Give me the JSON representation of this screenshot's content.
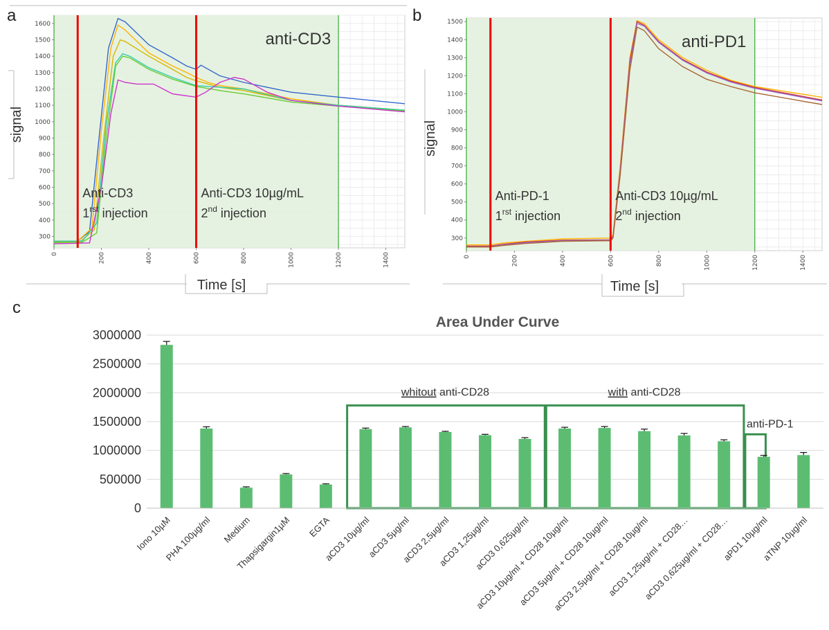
{
  "figure": {
    "letters": [
      "a",
      "b",
      "c"
    ]
  },
  "chart_data": [
    {
      "panel": "a",
      "type": "line",
      "annotation": "anti-CD3",
      "xlabel": "Time [s]",
      "ylabel": "signal",
      "xlim": [
        0,
        1480
      ],
      "ylim": [
        230,
        1650
      ],
      "x_ticks": [
        0,
        200,
        400,
        600,
        800,
        1000,
        1200,
        1400
      ],
      "y_ticks": [
        300,
        400,
        500,
        600,
        700,
        800,
        900,
        1000,
        1100,
        1200,
        1300,
        1400,
        1500,
        1600
      ],
      "shaded_range": [
        0,
        1200
      ],
      "colors": {
        "shade": "#e3f1de",
        "boundary": "#33aa33",
        "injection": "#ee0000"
      },
      "injection_lines": [
        {
          "x": 100,
          "line1": "Anti-CD3",
          "line2_base": "1",
          "line2_sup": "rst",
          "line2_rest": " injection"
        },
        {
          "x": 600,
          "line1": "Anti-CD3 10µg/mL",
          "line2_base": "2",
          "line2_sup": "nd",
          "line2_rest": " injection"
        }
      ],
      "series": [
        {
          "color": "#3366cc",
          "points": [
            [
              0,
              270
            ],
            [
              100,
              272
            ],
            [
              150,
              330
            ],
            [
              190,
              900
            ],
            [
              230,
              1450
            ],
            [
              270,
              1630
            ],
            [
              300,
              1610
            ],
            [
              400,
              1470
            ],
            [
              500,
              1390
            ],
            [
              560,
              1340
            ],
            [
              600,
              1320
            ],
            [
              620,
              1345
            ],
            [
              700,
              1280
            ],
            [
              800,
              1240
            ],
            [
              1000,
              1180
            ],
            [
              1200,
              1150
            ],
            [
              1480,
              1110
            ]
          ]
        },
        {
          "color": "#ffb300",
          "points": [
            [
              0,
              270
            ],
            [
              100,
              272
            ],
            [
              160,
              350
            ],
            [
              200,
              950
            ],
            [
              240,
              1450
            ],
            [
              270,
              1590
            ],
            [
              300,
              1560
            ],
            [
              400,
              1420
            ],
            [
              500,
              1340
            ],
            [
              560,
              1300
            ],
            [
              600,
              1270
            ],
            [
              650,
              1240
            ],
            [
              700,
              1220
            ],
            [
              800,
              1200
            ],
            [
              1000,
              1140
            ],
            [
              1200,
              1100
            ],
            [
              1480,
              1070
            ]
          ]
        },
        {
          "color": "#d4b800",
          "points": [
            [
              0,
              265
            ],
            [
              110,
              268
            ],
            [
              170,
              340
            ],
            [
              210,
              900
            ],
            [
              250,
              1400
            ],
            [
              280,
              1500
            ],
            [
              300,
              1490
            ],
            [
              400,
              1400
            ],
            [
              500,
              1320
            ],
            [
              560,
              1270
            ],
            [
              600,
              1250
            ],
            [
              700,
              1210
            ],
            [
              800,
              1190
            ],
            [
              1000,
              1130
            ],
            [
              1200,
              1100
            ],
            [
              1480,
              1070
            ]
          ]
        },
        {
          "color": "#33ccaa",
          "points": [
            [
              0,
              270
            ],
            [
              120,
              272
            ],
            [
              180,
              380
            ],
            [
              220,
              980
            ],
            [
              260,
              1360
            ],
            [
              290,
              1415
            ],
            [
              320,
              1400
            ],
            [
              400,
              1330
            ],
            [
              500,
              1270
            ],
            [
              560,
              1240
            ],
            [
              600,
              1220
            ],
            [
              700,
              1210
            ],
            [
              800,
              1200
            ],
            [
              1000,
              1130
            ],
            [
              1200,
              1100
            ],
            [
              1480,
              1070
            ]
          ]
        },
        {
          "color": "#66cc33",
          "points": [
            [
              0,
              262
            ],
            [
              120,
              265
            ],
            [
              180,
              320
            ],
            [
              220,
              900
            ],
            [
              260,
              1340
            ],
            [
              290,
              1400
            ],
            [
              320,
              1390
            ],
            [
              400,
              1320
            ],
            [
              500,
              1260
            ],
            [
              600,
              1215
            ],
            [
              700,
              1190
            ],
            [
              800,
              1170
            ],
            [
              1000,
              1120
            ],
            [
              1200,
              1095
            ],
            [
              1480,
              1065
            ]
          ]
        },
        {
          "color": "#cc33cc",
          "points": [
            [
              0,
              255
            ],
            [
              150,
              260
            ],
            [
              200,
              600
            ],
            [
              240,
              1050
            ],
            [
              270,
              1255
            ],
            [
              300,
              1240
            ],
            [
              350,
              1230
            ],
            [
              420,
              1230
            ],
            [
              500,
              1170
            ],
            [
              600,
              1150
            ],
            [
              640,
              1180
            ],
            [
              700,
              1240
            ],
            [
              760,
              1270
            ],
            [
              800,
              1260
            ],
            [
              900,
              1180
            ],
            [
              1000,
              1130
            ],
            [
              1200,
              1095
            ],
            [
              1480,
              1060
            ]
          ]
        }
      ]
    },
    {
      "panel": "b",
      "type": "line",
      "annotation": "anti-PD1",
      "xlabel": "Time [s]",
      "ylabel": "signal",
      "xlim": [
        0,
        1480
      ],
      "ylim": [
        230,
        1520
      ],
      "x_ticks": [
        0,
        200,
        400,
        600,
        800,
        1000,
        1200,
        1400
      ],
      "y_ticks": [
        300,
        400,
        500,
        600,
        700,
        800,
        900,
        1000,
        1100,
        1200,
        1300,
        1400,
        1500
      ],
      "shaded_range": [
        0,
        1200
      ],
      "colors": {
        "shade": "#e3f1de",
        "boundary": "#33aa33",
        "injection": "#ee0000"
      },
      "injection_lines": [
        {
          "x": 100,
          "line1": "Anti-PD-1",
          "line2_base": "1",
          "line2_sup": "rst",
          "line2_rest": " injection"
        },
        {
          "x": 600,
          "line1": "Anti-CD3 10µg/mL",
          "line2_base": "2",
          "line2_sup": "nd",
          "line2_rest": " injection"
        }
      ],
      "series": [
        {
          "color": "#ffb300",
          "points": [
            [
              0,
              262
            ],
            [
              100,
              262
            ],
            [
              150,
              272
            ],
            [
              250,
              282
            ],
            [
              400,
              295
            ],
            [
              600,
              300
            ],
            [
              610,
              320
            ],
            [
              640,
              700
            ],
            [
              680,
              1300
            ],
            [
              710,
              1505
            ],
            [
              740,
              1490
            ],
            [
              800,
              1400
            ],
            [
              900,
              1300
            ],
            [
              1000,
              1230
            ],
            [
              1100,
              1175
            ],
            [
              1200,
              1140
            ],
            [
              1480,
              1080
            ]
          ]
        },
        {
          "color": "#cc3333",
          "points": [
            [
              0,
              255
            ],
            [
              100,
              255
            ],
            [
              150,
              265
            ],
            [
              250,
              278
            ],
            [
              400,
              288
            ],
            [
              600,
              290
            ],
            [
              610,
              310
            ],
            [
              640,
              680
            ],
            [
              680,
              1280
            ],
            [
              710,
              1500
            ],
            [
              740,
              1480
            ],
            [
              800,
              1390
            ],
            [
              900,
              1290
            ],
            [
              1000,
              1220
            ],
            [
              1100,
              1170
            ],
            [
              1200,
              1135
            ],
            [
              1480,
              1065
            ]
          ]
        },
        {
          "color": "#9966cc",
          "points": [
            [
              0,
              252
            ],
            [
              100,
              252
            ],
            [
              150,
              262
            ],
            [
              250,
              275
            ],
            [
              400,
              285
            ],
            [
              600,
              288
            ],
            [
              610,
              305
            ],
            [
              640,
              670
            ],
            [
              680,
              1260
            ],
            [
              710,
              1490
            ],
            [
              740,
              1475
            ],
            [
              800,
              1385
            ],
            [
              900,
              1285
            ],
            [
              1000,
              1215
            ],
            [
              1100,
              1165
            ],
            [
              1200,
              1130
            ],
            [
              1480,
              1060
            ]
          ]
        },
        {
          "color": "#aa6633",
          "points": [
            [
              0,
              250
            ],
            [
              100,
              250
            ],
            [
              150,
              258
            ],
            [
              250,
              270
            ],
            [
              400,
              282
            ],
            [
              600,
              285
            ],
            [
              610,
              300
            ],
            [
              640,
              650
            ],
            [
              680,
              1230
            ],
            [
              710,
              1470
            ],
            [
              740,
              1450
            ],
            [
              800,
              1350
            ],
            [
              900,
              1250
            ],
            [
              1000,
              1180
            ],
            [
              1100,
              1140
            ],
            [
              1200,
              1105
            ],
            [
              1480,
              1040
            ]
          ]
        }
      ]
    },
    {
      "panel": "c",
      "type": "bar",
      "title": "Area Under Curve",
      "ylim": [
        0,
        3000000
      ],
      "y_ticks": [
        0,
        500000,
        1000000,
        1500000,
        2000000,
        2500000,
        3000000
      ],
      "y_tick_labels": [
        "0",
        "500000",
        "1000000",
        "1500000",
        "2000000",
        "2500000",
        "3000000"
      ],
      "colors": {
        "bar": "#5cbd72",
        "box": "#3a8f4f",
        "error": "#111111"
      },
      "categories": [
        "Iono 10µM",
        "PHA 100µg/ml",
        "Medium",
        "Thapsigargin1µM",
        "EGTA",
        "aCD3 10µg/ml",
        "aCD3 5µg/ml",
        "aCD3 2,5µg/ml",
        "aCD3 1,25µg/ml",
        "aCD3 0,625µg/ml",
        "aCD3 10µg/ml + CD28 10µg/ml",
        "aCD3 5µg/ml + CD28 10µg/ml",
        "aCD3 2,5µg/ml + CD28 10µg/ml",
        "aCD3 1,25µg/ml + CD28…",
        "aCD3 0,625µg/ml + CD28…",
        "aPD1 10µg/ml",
        "aTNP 10µg/ml"
      ],
      "values": [
        2830000,
        1380000,
        355000,
        585000,
        410000,
        1370000,
        1400000,
        1320000,
        1265000,
        1200000,
        1380000,
        1390000,
        1335000,
        1260000,
        1160000,
        890000,
        920000
      ],
      "errors": [
        60000,
        30000,
        15000,
        15000,
        12000,
        18000,
        15000,
        12000,
        15000,
        22000,
        22000,
        25000,
        35000,
        35000,
        25000,
        25000,
        45000
      ],
      "groups": [
        {
          "underlined": "whitout",
          "rest": " anti-CD28",
          "from": 5,
          "to": 9,
          "top": 1780000
        },
        {
          "underlined": "with",
          "rest": " anti-CD28",
          "from": 10,
          "to": 14,
          "top": 1780000
        },
        {
          "underlined": "",
          "rest": "anti-PD-1",
          "from": 15,
          "to": 15,
          "top": 1280000
        }
      ]
    }
  ]
}
